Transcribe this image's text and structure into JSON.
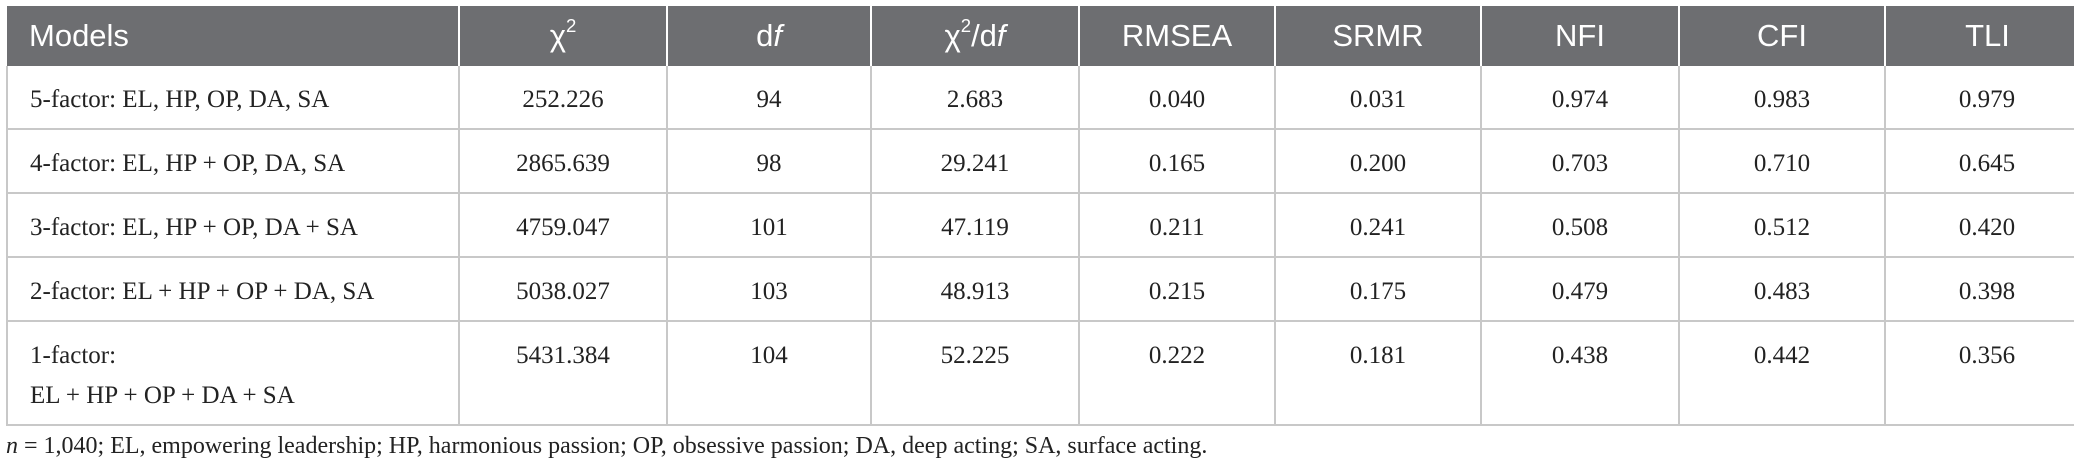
{
  "table": {
    "headers": {
      "models": "Models",
      "chi2_symbol": "χ",
      "chi2_sup": "2",
      "df_prefix": "d",
      "df_italic": "f",
      "chi2df_symbol": "χ",
      "chi2df_sup": "2",
      "chi2df_mid": "/d",
      "chi2df_italic": "f",
      "rmsea": "RMSEA",
      "srmr": "SRMR",
      "nfi": "NFI",
      "cfi": "CFI",
      "tli": "TLI"
    },
    "rows": [
      {
        "model": "5-factor: EL, HP, OP, DA, SA",
        "model_line2": "",
        "chi2": "252.226",
        "df": "94",
        "chi2df": "2.683",
        "rmsea": "0.040",
        "srmr": "0.031",
        "nfi": "0.974",
        "cfi": "0.983",
        "tli": "0.979"
      },
      {
        "model": "4-factor: EL, HP + OP, DA, SA",
        "model_line2": "",
        "chi2": "2865.639",
        "df": "98",
        "chi2df": "29.241",
        "rmsea": "0.165",
        "srmr": "0.200",
        "nfi": "0.703",
        "cfi": "0.710",
        "tli": "0.645"
      },
      {
        "model": "3-factor: EL, HP + OP, DA + SA",
        "model_line2": "",
        "chi2": "4759.047",
        "df": "101",
        "chi2df": "47.119",
        "rmsea": "0.211",
        "srmr": "0.241",
        "nfi": "0.508",
        "cfi": "0.512",
        "tli": "0.420"
      },
      {
        "model": "2-factor: EL + HP + OP + DA, SA",
        "model_line2": "",
        "chi2": "5038.027",
        "df": "103",
        "chi2df": "48.913",
        "rmsea": "0.215",
        "srmr": "0.175",
        "nfi": "0.479",
        "cfi": "0.483",
        "tli": "0.398"
      },
      {
        "model": "1-factor:",
        "model_line2": "EL + HP + OP + DA + SA",
        "chi2": "5431.384",
        "df": "104",
        "chi2df": "52.225",
        "rmsea": "0.222",
        "srmr": "0.181",
        "nfi": "0.438",
        "cfi": "0.442",
        "tli": "0.356"
      }
    ]
  },
  "footnote": {
    "n_italic": "n",
    "text": " = 1,040; EL, empowering leadership; HP, harmonious passion; OP, obsessive passion; DA, deep acting; SA, surface acting."
  }
}
